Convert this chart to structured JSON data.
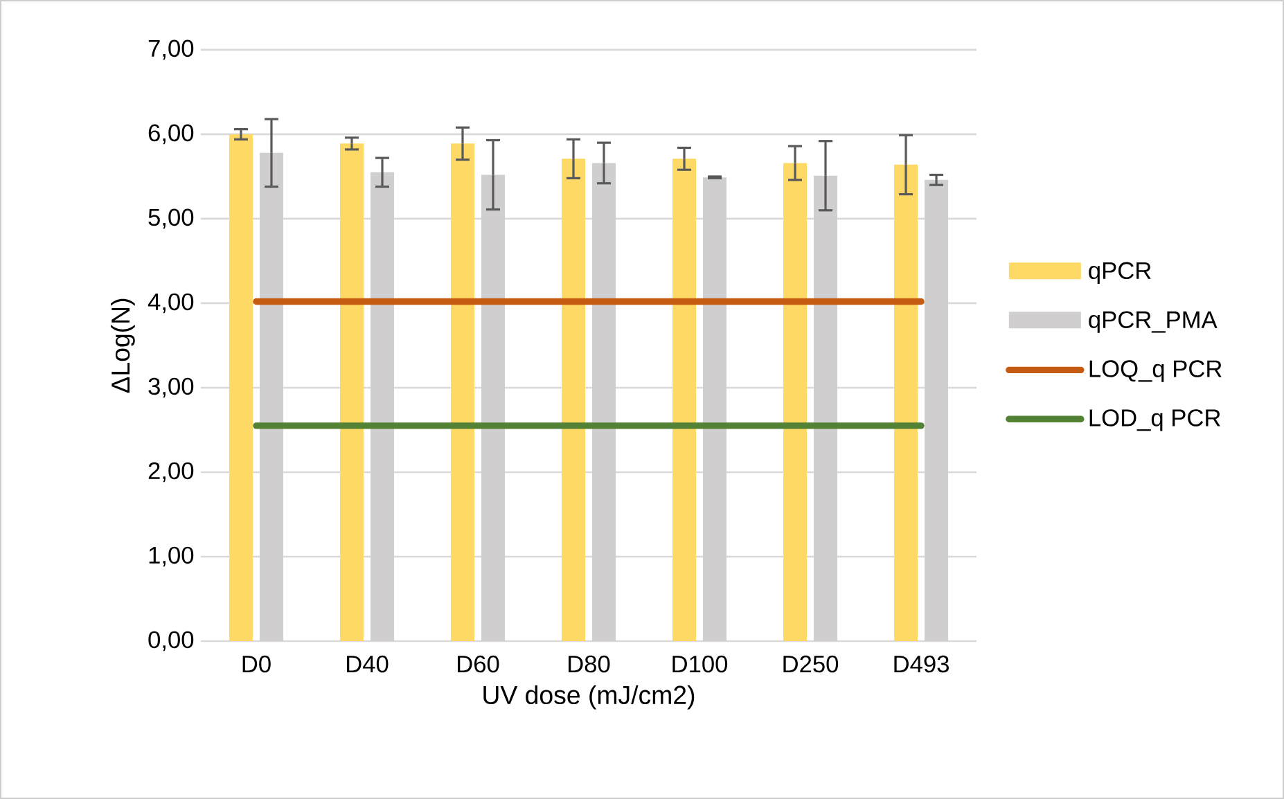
{
  "chart_data": {
    "type": "bar",
    "xlabel": "UV dose (mJ/cm2)",
    "ylabel": "ΔLog(N)",
    "categories": [
      "D0",
      "D40",
      "D60",
      "D80",
      "D100",
      "D250",
      "D493"
    ],
    "series": [
      {
        "name": "qPCR",
        "color": "#ffd966",
        "values": [
          6.0,
          5.89,
          5.89,
          5.71,
          5.71,
          5.66,
          5.64
        ],
        "errors": [
          0.06,
          0.07,
          0.19,
          0.23,
          0.13,
          0.2,
          0.35
        ]
      },
      {
        "name": "qPCR_PMA",
        "color": "#d0cece",
        "values": [
          5.78,
          5.55,
          5.52,
          5.66,
          5.49,
          5.51,
          5.46
        ],
        "errors": [
          0.4,
          0.17,
          0.41,
          0.24,
          0.01,
          0.41,
          0.06
        ]
      },
      {
        "name": "LOQ_q PCR",
        "type": "line",
        "color": "#c55a11",
        "values": [
          4.02,
          4.02,
          4.02,
          4.02,
          4.02,
          4.02,
          4.02
        ]
      },
      {
        "name": "LOD_q PCR",
        "type": "line",
        "color": "#548235",
        "values": [
          2.55,
          2.55,
          2.55,
          2.55,
          2.55,
          2.55,
          2.55
        ]
      }
    ],
    "ylim": [
      0,
      7
    ],
    "yticks": [
      {
        "value": 0,
        "label": "0,00"
      },
      {
        "value": 1,
        "label": "1,00"
      },
      {
        "value": 2,
        "label": "2,00"
      },
      {
        "value": 3,
        "label": "3,00"
      },
      {
        "value": 4,
        "label": "4,00"
      },
      {
        "value": 5,
        "label": "5,00"
      },
      {
        "value": 6,
        "label": "6,00"
      },
      {
        "value": 7,
        "label": "7,00"
      }
    ],
    "grid": "y",
    "legend": "right",
    "marker": "none"
  }
}
